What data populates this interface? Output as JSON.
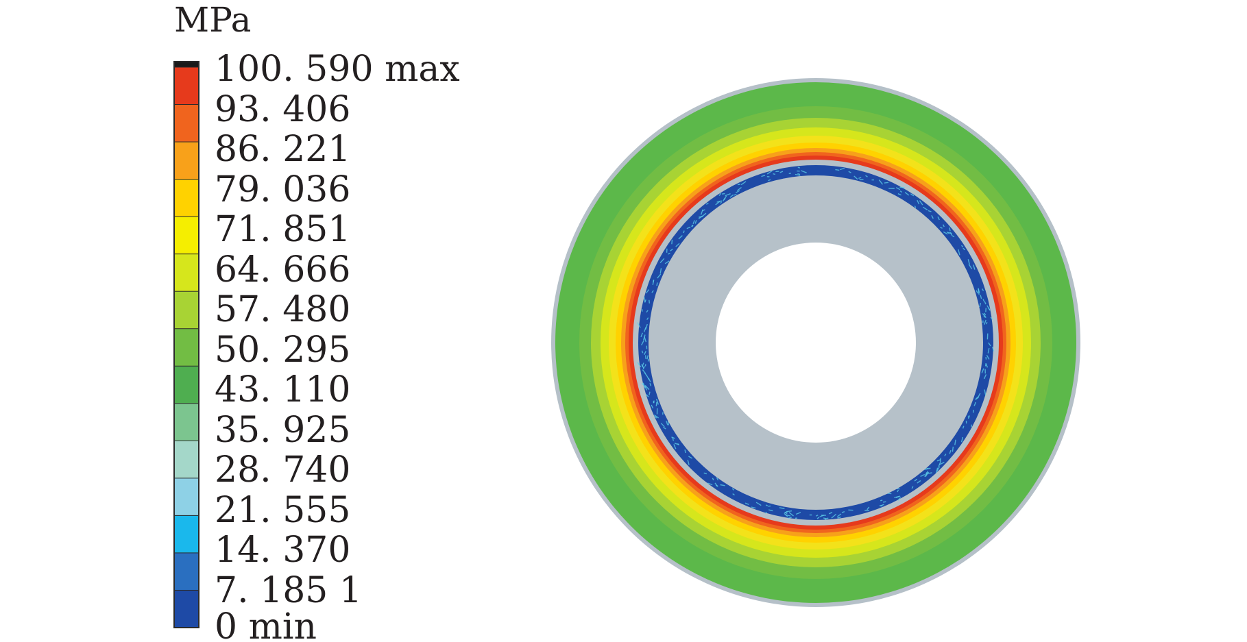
{
  "legend": {
    "unit": "MPa",
    "labels": [
      "100. 590 max",
      "93. 406",
      "86. 221",
      "79. 036",
      "71. 851",
      "64. 666",
      "57. 480",
      "50. 295",
      "43. 110",
      "35. 925",
      "28. 740",
      "21. 555",
      "14. 370",
      "7. 185 1",
      "0 min"
    ],
    "band_colors_top_to_bottom": [
      "#e63a1c",
      "#f0641e",
      "#f8a11a",
      "#ffd200",
      "#f5ee00",
      "#d6e61c",
      "#a8d334",
      "#72bd44",
      "#4fae50",
      "#7cc58f",
      "#a4d7c9",
      "#8ed1e6",
      "#1ab8ec",
      "#2a6fc0",
      "#1e4aa6"
    ],
    "top_cap_color": "#1a1a1a"
  },
  "contour": {
    "colors": {
      "outer_green": "#5cb84a",
      "yellow_green": "#b8d63a",
      "yellow": "#f3e21a",
      "orange": "#f7a11a",
      "red": "#e63a1c",
      "gray": "#b5c0c8",
      "blue_band": "#1e4aa6",
      "inner_gray": "#b6c1c9",
      "light_cyan": "#5fd0ea"
    }
  }
}
